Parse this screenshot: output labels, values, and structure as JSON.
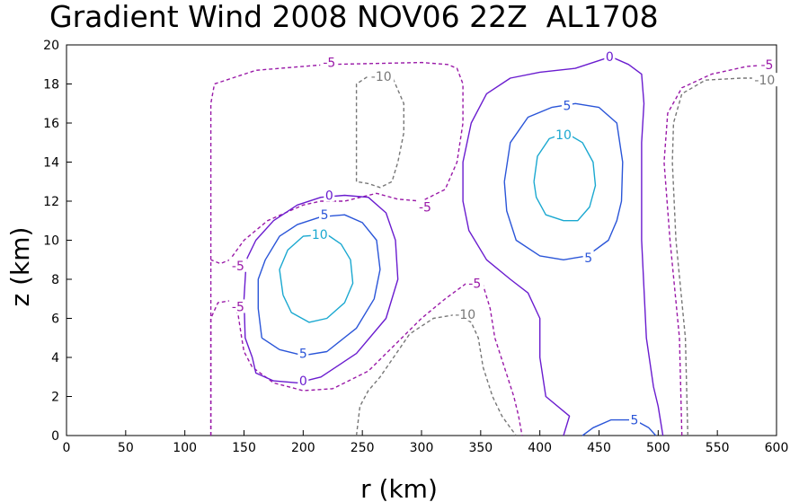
{
  "chart_data": {
    "type": "contour",
    "title": "Gradient Wind 2008 NOV06 22Z  AL1708",
    "xlabel": "r (km)",
    "ylabel": "z (km)",
    "xlim": [
      0,
      600
    ],
    "ylim": [
      0,
      20
    ],
    "x_ticks": [
      0,
      50,
      100,
      150,
      200,
      250,
      300,
      350,
      400,
      450,
      500,
      550,
      600
    ],
    "y_ticks": [
      0,
      2,
      4,
      6,
      8,
      10,
      12,
      14,
      16,
      18,
      20
    ],
    "grid": false,
    "colors": {
      "-10": "#777777",
      "-5": "#9a1aa8",
      "0": "#6a1ccf",
      "5": "#2a55d8",
      "10": "#1aa8d0"
    },
    "contours": [
      {
        "level": -5,
        "label": "-5",
        "dashed": true,
        "points": [
          [
            122,
            0
          ],
          [
            122,
            17
          ],
          [
            125,
            18
          ],
          [
            160,
            18.7
          ],
          [
            220,
            19
          ],
          [
            300,
            19.1
          ],
          [
            322,
            19
          ],
          [
            330,
            18.8
          ],
          [
            335,
            18
          ],
          [
            335,
            16
          ],
          [
            330,
            14
          ],
          [
            320,
            12.6
          ],
          [
            300,
            12
          ],
          [
            280,
            12.1
          ],
          [
            262,
            12.4
          ],
          [
            235,
            12
          ],
          [
            215,
            12
          ],
          [
            200,
            11.8
          ],
          [
            170,
            11
          ],
          [
            150,
            10
          ],
          [
            138,
            9
          ],
          [
            130,
            8.8
          ],
          [
            122,
            9
          ]
        ],
        "label_at": [
          [
            222,
            19.1
          ],
          [
            303,
            11.7
          ],
          [
            145,
            8.7
          ]
        ]
      },
      {
        "level": -5,
        "label": "-5",
        "dashed": true,
        "points": [
          [
            122,
            0
          ],
          [
            122,
            6
          ],
          [
            128,
            6.8
          ],
          [
            138,
            6.9
          ],
          [
            145,
            6.2
          ],
          [
            148,
            5
          ],
          [
            150,
            4.3
          ],
          [
            157,
            3.5
          ],
          [
            175,
            2.7
          ],
          [
            200,
            2.3
          ],
          [
            225,
            2.4
          ],
          [
            255,
            3.3
          ],
          [
            280,
            4.8
          ],
          [
            300,
            6
          ],
          [
            320,
            7
          ],
          [
            338,
            7.8
          ],
          [
            352,
            7.7
          ],
          [
            358,
            6.5
          ],
          [
            362,
            5
          ],
          [
            370,
            3.5
          ],
          [
            378,
            2
          ],
          [
            382,
            1
          ],
          [
            385,
            0
          ]
        ],
        "label_at": [
          [
            145,
            6.6
          ],
          [
            345,
            7.8
          ]
        ]
      },
      {
        "level": -5,
        "label": "-5",
        "dashed": true,
        "points": [
          [
            520,
            0
          ],
          [
            518,
            5
          ],
          [
            510,
            10
          ],
          [
            505,
            14
          ],
          [
            508,
            16.5
          ],
          [
            520,
            17.8
          ],
          [
            545,
            18.5
          ],
          [
            575,
            18.9
          ],
          [
            600,
            19
          ]
        ],
        "label_at": [
          [
            592,
            19
          ]
        ]
      },
      {
        "level": -10,
        "label": "-10",
        "dashed": true,
        "points": [
          [
            245,
            13
          ],
          [
            245,
            18
          ],
          [
            255,
            18.4
          ],
          [
            275,
            18.4
          ],
          [
            285,
            17
          ],
          [
            285,
            15.5
          ],
          [
            280,
            14
          ],
          [
            275,
            13
          ],
          [
            265,
            12.7
          ],
          [
            255,
            12.9
          ],
          [
            245,
            13
          ]
        ],
        "label_at": [
          [
            266,
            18.4
          ]
        ]
      },
      {
        "level": -10,
        "label": "-10",
        "dashed": true,
        "points": [
          [
            245,
            0
          ],
          [
            248,
            1.5
          ],
          [
            255,
            2.3
          ],
          [
            265,
            3
          ],
          [
            290,
            5.2
          ],
          [
            310,
            6
          ],
          [
            330,
            6.2
          ],
          [
            342,
            5.8
          ],
          [
            348,
            5
          ],
          [
            352,
            3.5
          ],
          [
            360,
            2
          ],
          [
            368,
            1
          ],
          [
            375,
            0.4
          ],
          [
            380,
            0
          ]
        ],
        "label_at": [
          [
            337,
            6.2
          ]
        ]
      },
      {
        "level": -10,
        "label": "-10",
        "dashed": true,
        "points": [
          [
            525,
            0
          ],
          [
            523,
            5
          ],
          [
            515,
            10
          ],
          [
            512,
            14
          ],
          [
            513,
            16
          ],
          [
            520,
            17.5
          ],
          [
            540,
            18.2
          ],
          [
            570,
            18.3
          ],
          [
            600,
            18.3
          ]
        ],
        "label_at": [
          [
            590,
            18.2
          ]
        ]
      },
      {
        "level": 0,
        "label": "0",
        "dashed": false,
        "points": [
          [
            157,
            4
          ],
          [
            160,
            3.2
          ],
          [
            175,
            2.8
          ],
          [
            195,
            2.7
          ],
          [
            215,
            3
          ],
          [
            245,
            4.2
          ],
          [
            270,
            6
          ],
          [
            280,
            8
          ],
          [
            278,
            10
          ],
          [
            270,
            11.4
          ],
          [
            255,
            12.2
          ],
          [
            235,
            12.3
          ],
          [
            215,
            12.2
          ],
          [
            195,
            11.8
          ],
          [
            175,
            11
          ],
          [
            160,
            10
          ],
          [
            152,
            9
          ],
          [
            150,
            7
          ],
          [
            151,
            5
          ],
          [
            157,
            4
          ]
        ],
        "label_at": [
          [
            222,
            12.3
          ],
          [
            200,
            2.8
          ]
        ]
      },
      {
        "level": 0,
        "label": "0",
        "dashed": false,
        "points": [
          [
            420,
            0
          ],
          [
            425,
            1
          ],
          [
            405,
            2
          ],
          [
            400,
            4
          ],
          [
            400,
            6
          ],
          [
            390,
            7.3
          ],
          [
            375,
            8
          ],
          [
            355,
            9
          ],
          [
            340,
            10.5
          ],
          [
            335,
            12
          ],
          [
            335,
            14
          ],
          [
            342,
            16
          ],
          [
            355,
            17.5
          ],
          [
            375,
            18.3
          ],
          [
            400,
            18.6
          ],
          [
            430,
            18.8
          ],
          [
            450,
            19.2
          ],
          [
            460,
            19.4
          ],
          [
            475,
            19
          ],
          [
            486,
            18.5
          ],
          [
            488,
            17
          ],
          [
            486,
            15
          ],
          [
            486,
            10
          ],
          [
            490,
            5
          ],
          [
            496,
            2.5
          ],
          [
            500,
            1.5
          ],
          [
            504,
            0
          ]
        ],
        "label_at": [
          [
            459,
            19.4
          ]
        ]
      },
      {
        "level": 5,
        "label": "5",
        "dashed": false,
        "points": [
          [
            165,
            5
          ],
          [
            180,
            4.4
          ],
          [
            200,
            4.1
          ],
          [
            220,
            4.3
          ],
          [
            245,
            5.5
          ],
          [
            260,
            7
          ],
          [
            265,
            8.5
          ],
          [
            262,
            10
          ],
          [
            250,
            10.9
          ],
          [
            235,
            11.3
          ],
          [
            215,
            11.2
          ],
          [
            195,
            10.8
          ],
          [
            180,
            10.2
          ],
          [
            168,
            9
          ],
          [
            162,
            8
          ],
          [
            162,
            6.5
          ],
          [
            165,
            5
          ]
        ],
        "label_at": [
          [
            218,
            11.3
          ],
          [
            200,
            4.2
          ]
        ]
      },
      {
        "level": 5,
        "label": "5",
        "dashed": false,
        "points": [
          [
            370,
            13
          ],
          [
            375,
            15
          ],
          [
            390,
            16.3
          ],
          [
            410,
            16.8
          ],
          [
            430,
            17
          ],
          [
            450,
            16.8
          ],
          [
            465,
            16
          ],
          [
            470,
            14
          ],
          [
            469,
            12
          ],
          [
            465,
            11
          ],
          [
            458,
            10
          ],
          [
            440,
            9.2
          ],
          [
            420,
            9
          ],
          [
            400,
            9.2
          ],
          [
            380,
            10
          ],
          [
            372,
            11.5
          ],
          [
            370,
            13
          ]
        ],
        "label_at": [
          [
            423,
            16.9
          ],
          [
            441,
            9.1
          ]
        ]
      },
      {
        "level": 5,
        "label": "5",
        "dashed": false,
        "points": [
          [
            436,
            0
          ],
          [
            445,
            0.4
          ],
          [
            460,
            0.8
          ],
          [
            480,
            0.8
          ],
          [
            492,
            0.4
          ],
          [
            498,
            0
          ]
        ],
        "label_at": [
          [
            480,
            0.8
          ]
        ]
      },
      {
        "level": 10,
        "label": "10",
        "dashed": false,
        "points": [
          [
            183,
            7.2
          ],
          [
            190,
            6.3
          ],
          [
            205,
            5.8
          ],
          [
            220,
            6
          ],
          [
            235,
            6.8
          ],
          [
            242,
            7.8
          ],
          [
            240,
            9
          ],
          [
            232,
            9.8
          ],
          [
            220,
            10.3
          ],
          [
            200,
            10.2
          ],
          [
            187,
            9.5
          ],
          [
            180,
            8.5
          ],
          [
            183,
            7.2
          ]
        ],
        "label_at": [
          [
            214,
            10.3
          ]
        ]
      },
      {
        "level": 10,
        "label": "10",
        "dashed": false,
        "points": [
          [
            395,
            13
          ],
          [
            398,
            14.3
          ],
          [
            408,
            15.2
          ],
          [
            422,
            15.5
          ],
          [
            436,
            15
          ],
          [
            445,
            14
          ],
          [
            447,
            12.8
          ],
          [
            442,
            11.7
          ],
          [
            432,
            11
          ],
          [
            420,
            11
          ],
          [
            405,
            11.3
          ],
          [
            397,
            12.2
          ],
          [
            395,
            13
          ]
        ],
        "label_at": [
          [
            420,
            15.4
          ]
        ]
      }
    ]
  }
}
